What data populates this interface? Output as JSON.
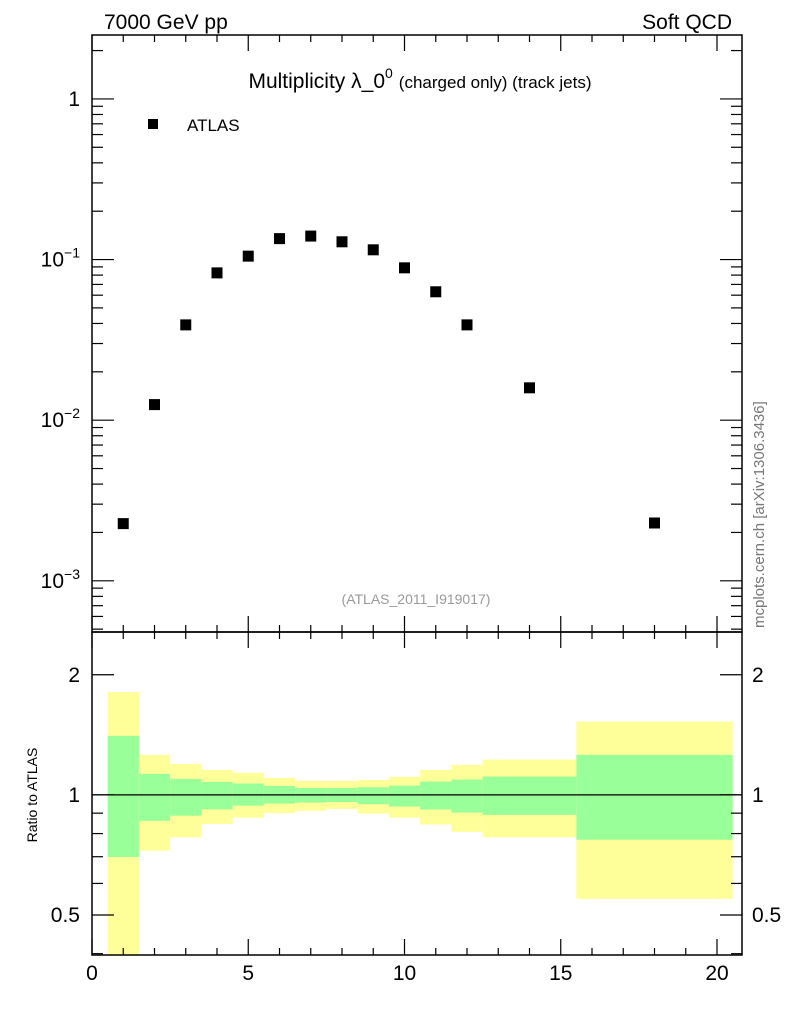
{
  "header": {
    "left": "7000 GeV pp",
    "right": "Soft QCD"
  },
  "watermark": "mcplots.cern.ch [arXiv:1306.3436]",
  "colors": {
    "marker": "#000000",
    "band_outer": "#ffff99",
    "band_inner": "#99ff99",
    "analysis_label": "#999999"
  },
  "chart_data": [
    {
      "type": "scatter",
      "title_main": "Multiplicity λ_0",
      "title_sup": "0",
      "title_rest": "(charged only) (track jets)",
      "legend": [
        "ATLAS"
      ],
      "legend_placement": "top-left",
      "annotation": "(ATLAS_2011_I919017)",
      "xlim": [
        0,
        20.8
      ],
      "ylim": [
        0.00048,
        2.5
      ],
      "yscale": "log",
      "ytick_labels": [
        {
          "v": 1,
          "base": "1",
          "exp": ""
        },
        {
          "v": 0.1,
          "base": "10",
          "exp": "−1"
        },
        {
          "v": 0.01,
          "base": "10",
          "exp": "−2"
        },
        {
          "v": 0.001,
          "base": "10",
          "exp": "−3"
        }
      ],
      "series": [
        {
          "name": "ATLAS",
          "x": [
            1,
            2,
            3,
            4,
            5,
            6,
            7,
            8,
            9,
            10,
            11,
            12,
            14,
            18
          ],
          "y": [
            0.00227,
            0.0125,
            0.0392,
            0.0826,
            0.105,
            0.135,
            0.14,
            0.129,
            0.115,
            0.0888,
            0.063,
            0.0392,
            0.0159,
            0.00229
          ]
        }
      ]
    },
    {
      "type": "area",
      "ylabel": "Ratio to ATLAS",
      "xlim": [
        0,
        20.8
      ],
      "ylim": [
        0.397,
        2.56
      ],
      "yscale": "log",
      "ytick_labels": [
        {
          "v": 2,
          "label": "2"
        },
        {
          "v": 1,
          "label": "1"
        },
        {
          "v": 0.5,
          "label": "0.5"
        }
      ],
      "xtick_labels": [
        "0",
        "5",
        "10",
        "15",
        "20"
      ],
      "bins": [
        [
          0.5,
          1.5
        ],
        [
          1.5,
          2.5
        ],
        [
          2.5,
          3.5
        ],
        [
          3.5,
          4.5
        ],
        [
          4.5,
          5.5
        ],
        [
          5.5,
          6.5
        ],
        [
          6.5,
          7.5
        ],
        [
          7.5,
          8.5
        ],
        [
          8.5,
          9.5
        ],
        [
          9.5,
          10.5
        ],
        [
          10.5,
          11.5
        ],
        [
          11.5,
          12.5
        ],
        [
          12.5,
          15.5
        ],
        [
          15.5,
          20.5
        ]
      ],
      "outer_band": {
        "hi": [
          1.81,
          1.26,
          1.196,
          1.155,
          1.136,
          1.103,
          1.084,
          1.084,
          1.09,
          1.11,
          1.155,
          1.189,
          1.226,
          1.527
        ],
        "lo": [
          0.38,
          0.725,
          0.783,
          0.846,
          0.877,
          0.901,
          0.913,
          0.922,
          0.898,
          0.877,
          0.843,
          0.808,
          0.783,
          0.549
        ]
      },
      "inner_band": {
        "hi": [
          1.406,
          1.129,
          1.097,
          1.078,
          1.068,
          1.053,
          1.041,
          1.041,
          1.045,
          1.055,
          1.08,
          1.093,
          1.112,
          1.26
        ],
        "lo": [
          0.699,
          0.861,
          0.887,
          0.92,
          0.94,
          0.951,
          0.957,
          0.96,
          0.948,
          0.935,
          0.919,
          0.903,
          0.891,
          0.772
        ]
      },
      "reference_line": 1
    }
  ]
}
